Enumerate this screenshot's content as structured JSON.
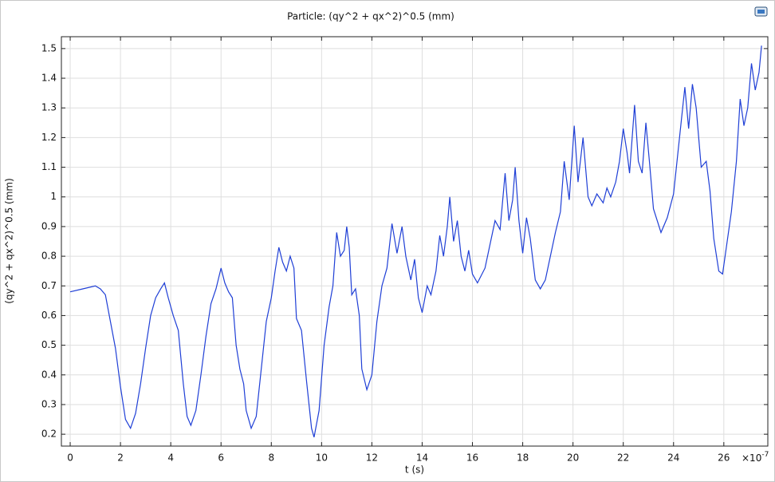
{
  "chart_data": {
    "type": "line",
    "title": "Particle: (qy^2 + qx^2)^0.5 (mm)",
    "x_label": "t (s)",
    "x_label_multiplier": "×10",
    "x_label_exponent": "-7",
    "y_label": "(qy^2 + qx^2)^0.5 (mm)",
    "xlim": [
      -0.35,
      27.75
    ],
    "ylim": [
      0.16,
      1.54
    ],
    "xticks": [
      0,
      2,
      4,
      6,
      8,
      10,
      12,
      14,
      16,
      18,
      20,
      22,
      24,
      26
    ],
    "yticks": [
      0.2,
      0.3,
      0.4,
      0.5,
      0.6,
      0.7,
      0.8,
      0.9,
      1,
      1.1,
      1.2,
      1.3,
      1.4,
      1.5
    ],
    "grid": true,
    "series": [
      {
        "color": "#1f3fd6",
        "x": [
          0,
          0.5,
          1.0,
          1.2,
          1.4,
          1.6,
          1.8,
          2.0,
          2.2,
          2.4,
          2.6,
          2.8,
          3.0,
          3.2,
          3.4,
          3.6,
          3.75,
          3.9,
          4.1,
          4.3,
          4.5,
          4.65,
          4.8,
          5.0,
          5.2,
          5.4,
          5.6,
          5.8,
          6.0,
          6.15,
          6.3,
          6.45,
          6.6,
          6.75,
          6.9,
          7.0,
          7.2,
          7.4,
          7.6,
          7.8,
          8.0,
          8.15,
          8.3,
          8.45,
          8.6,
          8.75,
          8.9,
          9.0,
          9.2,
          9.4,
          9.6,
          9.7,
          9.9,
          10.1,
          10.3,
          10.45,
          10.6,
          10.75,
          10.9,
          11.0,
          11.1,
          11.2,
          11.35,
          11.5,
          11.6,
          11.8,
          12.0,
          12.2,
          12.4,
          12.6,
          12.8,
          13.0,
          13.2,
          13.35,
          13.55,
          13.7,
          13.85,
          14.0,
          14.2,
          14.35,
          14.55,
          14.7,
          14.85,
          15.0,
          15.1,
          15.25,
          15.4,
          15.55,
          15.7,
          15.85,
          16.0,
          16.2,
          16.5,
          16.7,
          16.9,
          17.1,
          17.3,
          17.45,
          17.6,
          17.7,
          17.85,
          18.0,
          18.15,
          18.3,
          18.5,
          18.7,
          18.9,
          19.1,
          19.3,
          19.5,
          19.65,
          19.85,
          20.05,
          20.2,
          20.4,
          20.6,
          20.75,
          20.95,
          21.2,
          21.35,
          21.5,
          21.7,
          21.85,
          22.0,
          22.15,
          22.25,
          22.45,
          22.6,
          22.75,
          22.9,
          23.05,
          23.2,
          23.35,
          23.5,
          23.75,
          24.0,
          24.15,
          24.3,
          24.45,
          24.6,
          24.75,
          24.9,
          25.1,
          25.3,
          25.45,
          25.6,
          25.8,
          25.95,
          26.1,
          26.3,
          26.5,
          26.65,
          26.8,
          26.95,
          27.1,
          27.25,
          27.4,
          27.5
        ],
        "values": [
          0.68,
          0.69,
          0.7,
          0.69,
          0.67,
          0.58,
          0.49,
          0.36,
          0.25,
          0.22,
          0.27,
          0.37,
          0.49,
          0.6,
          0.66,
          0.69,
          0.71,
          0.66,
          0.6,
          0.55,
          0.37,
          0.26,
          0.23,
          0.28,
          0.4,
          0.53,
          0.64,
          0.69,
          0.76,
          0.71,
          0.68,
          0.66,
          0.5,
          0.42,
          0.37,
          0.28,
          0.22,
          0.26,
          0.42,
          0.58,
          0.66,
          0.75,
          0.83,
          0.78,
          0.75,
          0.8,
          0.76,
          0.59,
          0.55,
          0.38,
          0.22,
          0.19,
          0.28,
          0.5,
          0.63,
          0.7,
          0.88,
          0.8,
          0.82,
          0.9,
          0.83,
          0.67,
          0.69,
          0.6,
          0.42,
          0.35,
          0.4,
          0.58,
          0.7,
          0.76,
          0.91,
          0.81,
          0.9,
          0.8,
          0.72,
          0.79,
          0.66,
          0.61,
          0.7,
          0.67,
          0.75,
          0.87,
          0.8,
          0.9,
          1.0,
          0.85,
          0.92,
          0.8,
          0.75,
          0.82,
          0.74,
          0.71,
          0.76,
          0.84,
          0.92,
          0.89,
          1.08,
          0.92,
          0.99,
          1.1,
          0.92,
          0.81,
          0.93,
          0.86,
          0.72,
          0.69,
          0.72,
          0.8,
          0.88,
          0.95,
          1.12,
          0.99,
          1.24,
          1.05,
          1.2,
          1.0,
          0.97,
          1.01,
          0.98,
          1.03,
          1.0,
          1.05,
          1.12,
          1.23,
          1.15,
          1.08,
          1.31,
          1.12,
          1.08,
          1.25,
          1.11,
          0.96,
          0.92,
          0.88,
          0.93,
          1.01,
          1.13,
          1.25,
          1.37,
          1.23,
          1.38,
          1.3,
          1.1,
          1.12,
          1.02,
          0.86,
          0.75,
          0.74,
          0.83,
          0.95,
          1.12,
          1.33,
          1.24,
          1.3,
          1.45,
          1.36,
          1.42,
          1.51
        ]
      }
    ]
  }
}
